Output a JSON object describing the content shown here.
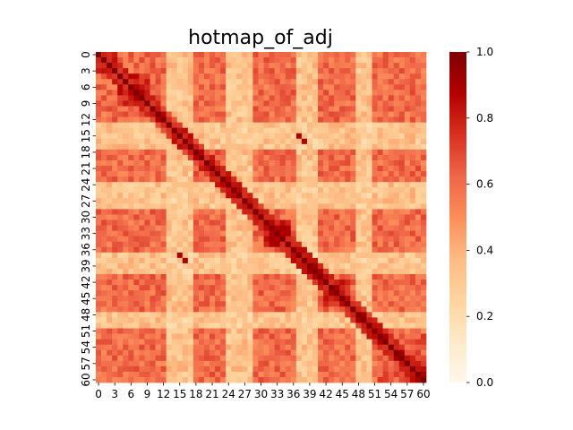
{
  "chart_data": {
    "type": "heatmap",
    "title": "hotmap_of_adj",
    "xlabel": "",
    "ylabel": "",
    "n": 61,
    "x_tick_labels": [
      "0",
      "3",
      "6",
      "9",
      "12",
      "15",
      "18",
      "21",
      "24",
      "27",
      "30",
      "33",
      "36",
      "39",
      "42",
      "45",
      "48",
      "51",
      "54",
      "57",
      "60"
    ],
    "y_tick_labels": [
      "0",
      "3",
      "6",
      "9",
      "12",
      "15",
      "18",
      "21",
      "24",
      "27",
      "30",
      "33",
      "36",
      "39",
      "42",
      "45",
      "48",
      "51",
      "54",
      "57",
      "60"
    ],
    "colorbar": {
      "range": [
        0.0,
        1.0
      ],
      "tick_labels": [
        "0.0",
        "0.2",
        "0.4",
        "0.6",
        "0.8",
        "1.0"
      ],
      "colormap": "OrRd"
    },
    "diagonal_value": 1.0,
    "groups": [
      {
        "start": 0,
        "end": 3,
        "value": 0.85
      },
      {
        "start": 4,
        "end": 9,
        "value": 0.8
      },
      {
        "start": 10,
        "end": 14,
        "value": 0.55
      },
      {
        "start": 15,
        "end": 16,
        "value": 0.45
      },
      {
        "start": 17,
        "end": 22,
        "value": 0.65
      },
      {
        "start": 23,
        "end": 26,
        "value": 0.7
      },
      {
        "start": 27,
        "end": 30,
        "value": 0.5
      },
      {
        "start": 31,
        "end": 35,
        "value": 0.82
      },
      {
        "start": 36,
        "end": 38,
        "value": 0.6
      },
      {
        "start": 39,
        "end": 41,
        "value": 0.5
      },
      {
        "start": 42,
        "end": 46,
        "value": 0.78
      },
      {
        "start": 47,
        "end": 51,
        "value": 0.55
      },
      {
        "start": 52,
        "end": 60,
        "value": 0.65
      }
    ],
    "off_group_value": 0.6,
    "light_bands": [
      13,
      14,
      15,
      16,
      17,
      24,
      25,
      26,
      27,
      28,
      37,
      38,
      39,
      40,
      48,
      49,
      50
    ],
    "light_band_value": 0.33,
    "hot_spots": [
      {
        "row": 15,
        "col": 37,
        "value": 0.9
      },
      {
        "row": 16,
        "col": 38,
        "value": 0.9
      },
      {
        "row": 37,
        "col": 15,
        "value": 0.9
      },
      {
        "row": 38,
        "col": 16,
        "value": 0.9
      }
    ],
    "grid": false,
    "legend": "colorbar-right"
  }
}
